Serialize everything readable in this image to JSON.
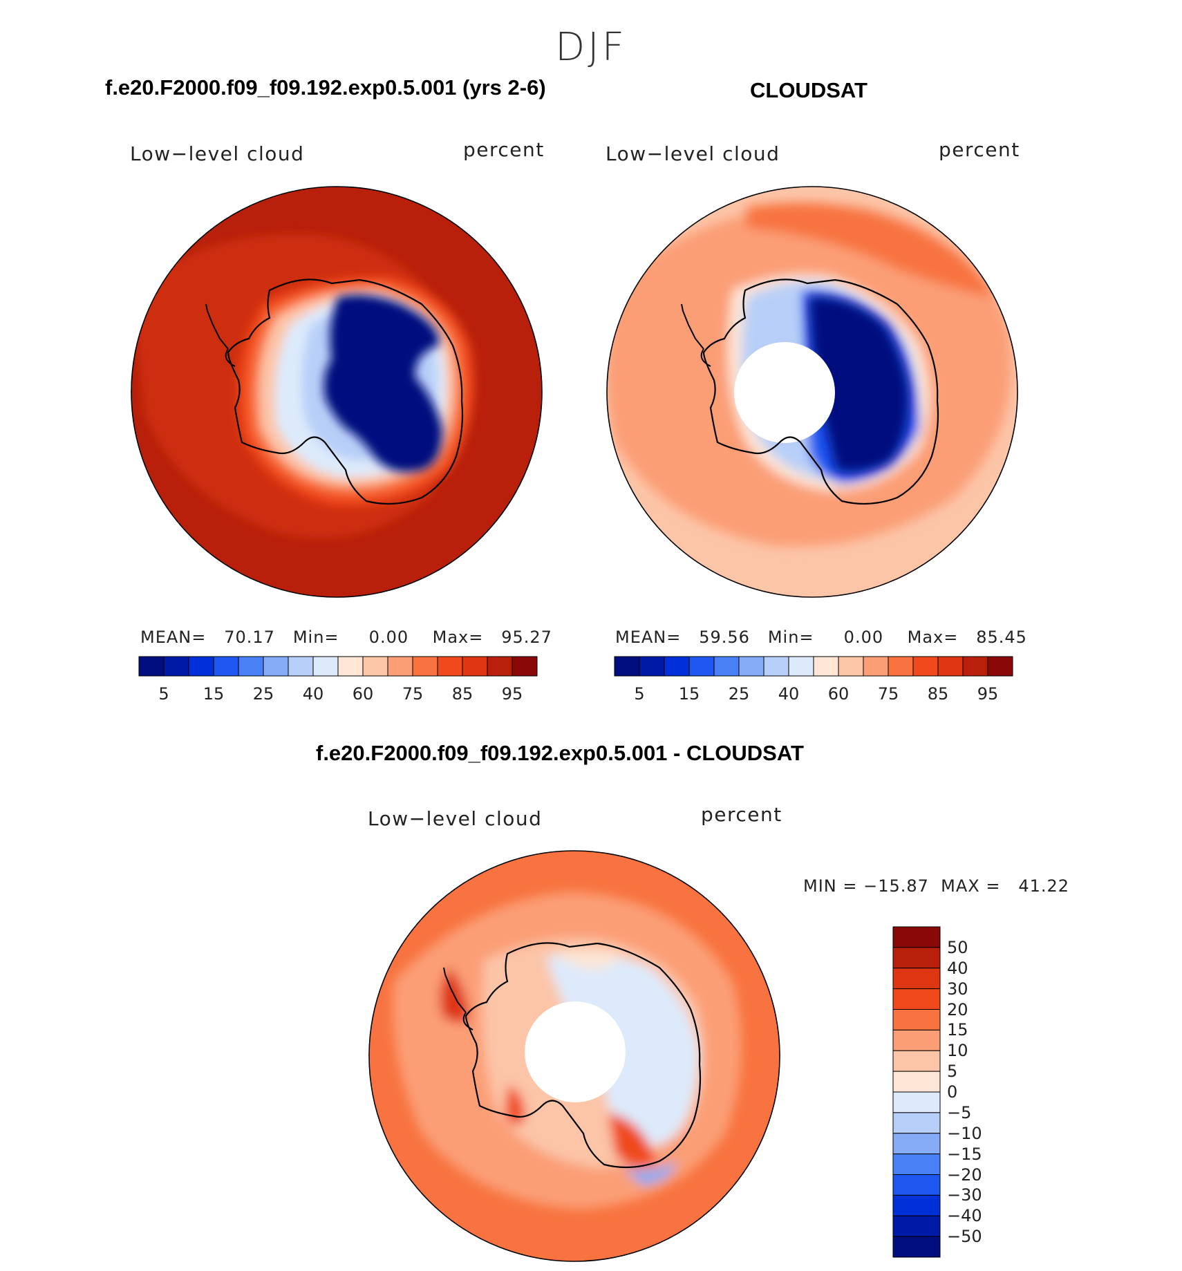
{
  "season": "DJF",
  "panel_model": {
    "title": "f.e20.F2000.f09_f09.192.exp0.5.001 (yrs 2-6)",
    "variable": "Low−level cloud",
    "units": "percent",
    "stats": "MEAN=   70.17   Min=     0.00    Max=   95.27"
  },
  "panel_obs": {
    "title": "CLOUDSAT",
    "variable": "Low−level cloud",
    "units": "percent",
    "stats": "MEAN=   59.56   Min=     0.00    Max=   85.45"
  },
  "panel_diff": {
    "title": "f.e20.F2000.f09_f09.192.exp0.5.001 - CLOUDSAT",
    "variable": "Low−level cloud",
    "units": "percent",
    "stats": "MIN = −15.87  MAX =   41.22"
  },
  "colorbar_abs": {
    "colors": [
      "#000e7e",
      "#001aa8",
      "#0030d8",
      "#1e56f0",
      "#4a80f6",
      "#86abf6",
      "#b7cff8",
      "#ddeafb",
      "#fde6d6",
      "#fcc5a8",
      "#fb9e76",
      "#f8733f",
      "#f04a1c",
      "#de3512",
      "#b8200b",
      "#8b0808"
    ],
    "tick_labels": [
      "5",
      "15",
      "25",
      "40",
      "60",
      "75",
      "85",
      "95"
    ]
  },
  "colorbar_diff": {
    "colors": [
      "#8b0808",
      "#b8200b",
      "#de3512",
      "#f04a1c",
      "#f8733f",
      "#fb9e76",
      "#fcc5a8",
      "#fde6d6",
      "#ddeafb",
      "#b7cff8",
      "#86abf6",
      "#4a80f6",
      "#1e56f0",
      "#0030d8",
      "#001aa8",
      "#000e7e"
    ],
    "tick_labels": [
      "50",
      "40",
      "30",
      "20",
      "15",
      "10",
      "5",
      "0",
      "−5",
      "−10",
      "−15",
      "−20",
      "−30",
      "−40",
      "−50"
    ]
  }
}
